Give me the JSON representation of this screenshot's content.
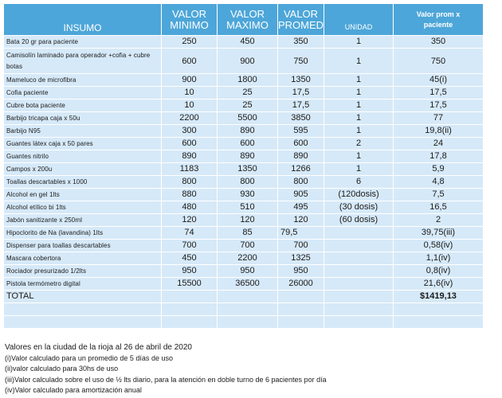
{
  "headers": {
    "insumo": "INSUMO",
    "valor_minimo": [
      "VALOR",
      "MINIMO"
    ],
    "valor_maximo": [
      "VALOR",
      "MAXIMO"
    ],
    "valor_promed": [
      "VALOR",
      "PROMED"
    ],
    "unidad": "UNIDAD",
    "valor_prom_x_paciente": [
      "Valor prom x",
      "paciente"
    ]
  },
  "rows": [
    {
      "name": "Bata 20 gr para paciente",
      "min": "250",
      "max": "450",
      "prom": "350",
      "unidad": "1",
      "xpac": "350"
    },
    {
      "name": "Camisolín laminado para operador +cofia + cubre botas",
      "min": "600",
      "max": "900",
      "prom": "750",
      "unidad": "1",
      "xpac": "750"
    },
    {
      "name": "Mameluco de microfibra",
      "min": "900",
      "max": "1800",
      "prom": "1350",
      "unidad": "1",
      "xpac": "45(i)"
    },
    {
      "name": "Cofia paciente",
      "min": "10",
      "max": "25",
      "prom": "17,5",
      "unidad": "1",
      "xpac": "17,5"
    },
    {
      "name": "Cubre bota paciente",
      "min": "10",
      "max": "25",
      "prom": "17,5",
      "unidad": "1",
      "xpac": "17,5"
    },
    {
      "name": "Barbijo tricapa caja x 50u",
      "min": "2200",
      "max": "5500",
      "prom": "3850",
      "unidad": "1",
      "xpac": "77"
    },
    {
      "name": "Barbijo N95",
      "min": "300",
      "max": "890",
      "prom": "595",
      "unidad": "1",
      "xpac": "19,8(ii)"
    },
    {
      "name": "Guantes látex caja x 50 pares",
      "min": "600",
      "max": "600",
      "prom": "600",
      "unidad": "2",
      "xpac": "24"
    },
    {
      "name": "Guantes nitrilo",
      "min": "890",
      "max": "890",
      "prom": "890",
      "unidad": "1",
      "xpac": "17,8"
    },
    {
      "name": "Campos x 200u",
      "min": "1183",
      "max": "1350",
      "prom": "1266",
      "unidad": "1",
      "xpac": "5,9"
    },
    {
      "name": "Toallas descartables x 1000",
      "min": "800",
      "max": "800",
      "prom": "800",
      "unidad": "6",
      "xpac": "4,8"
    },
    {
      "name": "Alcohol en gel 1lts",
      "min": "880",
      "max": "930",
      "prom": "905",
      "unidad": "(120dosis)",
      "xpac": "7,5"
    },
    {
      "name": "Alcohol etílico bi 1lts",
      "min": "480",
      "max": "510",
      "prom": "495",
      "unidad": "(30 dosis)",
      "xpac": "16,5"
    },
    {
      "name": "Jabón sanitizante x 250ml",
      "min": "120",
      "max": "120",
      "prom": "120",
      "unidad": "(60 dosis)",
      "xpac": "2"
    },
    {
      "name": "Hipoclorito de Na (lavandina) 1lts",
      "min": "74",
      "max": "85",
      "prom": "79,5",
      "unidad": "",
      "xpac": "39,75(iii)"
    },
    {
      "name": "Dispenser para toallas descartables",
      "min": "700",
      "max": "700",
      "prom": "700",
      "unidad": "",
      "xpac": "0,58(iv)"
    },
    {
      "name": "Mascara cobertora",
      "min": "450",
      "max": "2200",
      "prom": "1325",
      "unidad": "",
      "xpac": "1,1(iv)"
    },
    {
      "name": "Rociador presurizado 1/2lts",
      "min": "950",
      "max": "950",
      "prom": "950",
      "unidad": "",
      "xpac": "0,8(iv)"
    },
    {
      "name": "Pistola termómetro digital",
      "min": "15500",
      "max": "36500",
      "prom": "26000",
      "unidad": "",
      "xpac": "21,6(iv)"
    }
  ],
  "total": {
    "label": "TOTAL",
    "value": "$1419,13"
  },
  "notes": [
    "Valores en la ciudad de la rioja al 26 de abril de 2020",
    "(i)Valor calculado para un promedio de 5 días de uso",
    "(ii)valor calculado para 30hs de uso",
    "(iii)Valor calculado sobre el uso de ½ lts diario, para la atención en doble turno de 6 pacientes por día",
    "(iv)Valor calculado para amortización anual"
  ]
}
